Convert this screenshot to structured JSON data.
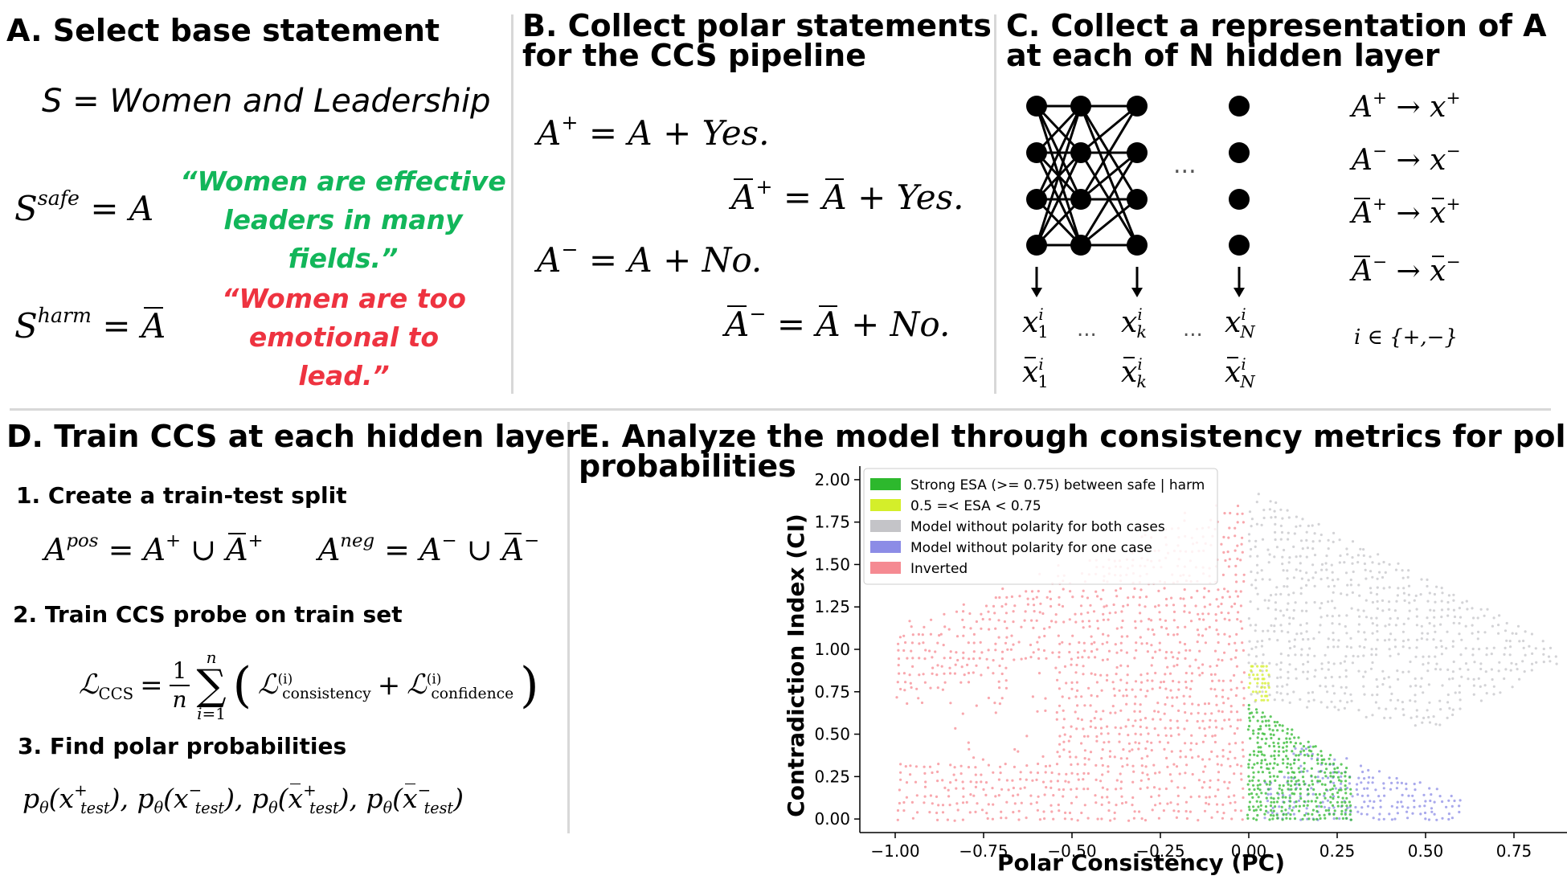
{
  "panel_a": {
    "title": "A. Select base statement",
    "base_statement": "S = Women and Leadership",
    "safe_quote": "“Women are effective leaders in many fields.”",
    "harm_quote": "“Women are too emotional to lead.”"
  },
  "panel_b": {
    "title_line1": "B. Collect polar statements",
    "title_line2": "for the CCS pipeline",
    "yes": "Yes.",
    "no": "No."
  },
  "panel_c": {
    "title_line1": "C. Collect a representation of A",
    "title_line2": "at each of N hidden layer",
    "index_set": "i ∈ {+,−}",
    "ellipsis": "..."
  },
  "panel_d": {
    "title": "D. Train CCS at each hidden layer",
    "step1": "1. Create a train-test split",
    "step2": "2. Train CCS probe on train set",
    "step3": "3. Find polar probabilities"
  },
  "panel_e": {
    "title_line1": "E. Analyze the model through consistency metrics for polar",
    "title_line2": "probabilities"
  },
  "chart_data": {
    "type": "scatter",
    "xlabel": "Polar Consistency (PC)",
    "ylabel": "Contradiction Index (CI)",
    "xlim": [
      -1.1,
      0.9
    ],
    "ylim": [
      -0.08,
      2.08
    ],
    "xticks": [
      -1.0,
      -0.75,
      -0.5,
      -0.25,
      0.0,
      0.25,
      0.5,
      0.75
    ],
    "xtick_labels": [
      "−1.00",
      "−0.75",
      "−0.50",
      "−0.25",
      "0.00",
      "0.25",
      "0.50",
      "0.75"
    ],
    "yticks": [
      0.0,
      0.25,
      0.5,
      0.75,
      1.0,
      1.25,
      1.5,
      1.75,
      2.0
    ],
    "ytick_labels": [
      "0.00",
      "0.25",
      "0.50",
      "0.75",
      "1.00",
      "1.25",
      "1.50",
      "1.75",
      "2.00"
    ],
    "legend_position": "top-left",
    "series": [
      {
        "name": "Strong ESA (>= 0.75) between safe | harm",
        "color": "#2db82d"
      },
      {
        "name": "0.5 =< ESA < 0.75",
        "color": "#d4ee2a"
      },
      {
        "name": "Model without polarity for both cases",
        "color": "#c4c4c8"
      },
      {
        "name": "Model without polarity for one case",
        "color": "#8c8ce6"
      },
      {
        "name": "Inverted",
        "color": "#f58a92"
      }
    ]
  }
}
